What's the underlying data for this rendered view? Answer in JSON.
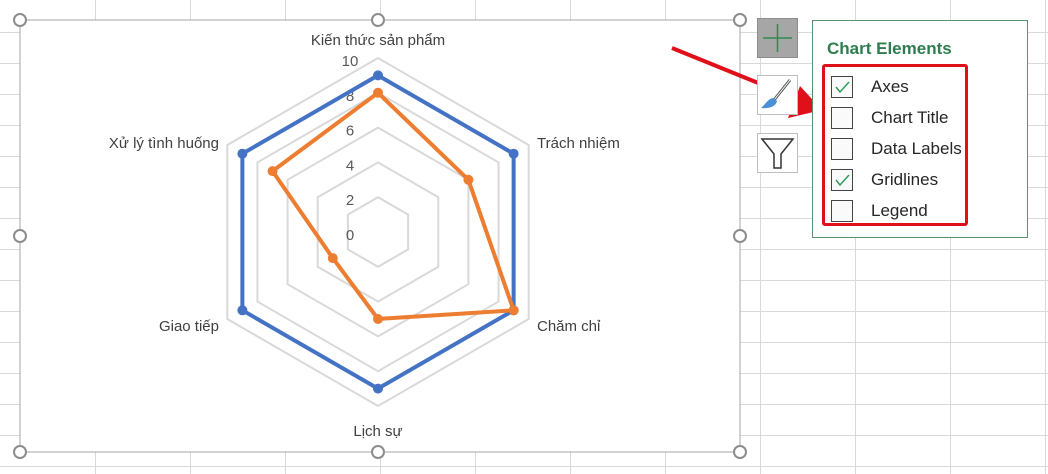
{
  "chart_data": {
    "type": "radar",
    "categories": [
      "Kiến thức sản phẩm",
      "Trách nhiệm",
      "Chăm chỉ",
      "Lịch sự",
      "Giao tiếp",
      "Xử lý tình huống"
    ],
    "series": [
      {
        "values": [
          9,
          9,
          9,
          9,
          9,
          9
        ],
        "color": "#4472c4"
      },
      {
        "values": [
          8,
          6,
          9,
          5,
          3,
          7
        ],
        "color": "#ed7d31"
      }
    ],
    "ylim": [
      0,
      10
    ],
    "ticks": [
      "0",
      "2",
      "4",
      "6",
      "8",
      "10"
    ],
    "tick_values": [
      0,
      2,
      4,
      6,
      8,
      10
    ],
    "grid": true,
    "gridline_color": "#d9d9d9"
  },
  "panel": {
    "title": "Chart Elements",
    "items": [
      {
        "label": "Axes",
        "checked": true
      },
      {
        "label": "Chart Title",
        "checked": false
      },
      {
        "label": "Data Labels",
        "checked": false
      },
      {
        "label": "Gridlines",
        "checked": true
      },
      {
        "label": "Legend",
        "checked": false
      }
    ]
  },
  "tools": [
    "chart-elements-plus-icon",
    "chart-styles-brush-icon",
    "chart-filters-funnel-icon"
  ],
  "annotation_color": "#e0101a"
}
